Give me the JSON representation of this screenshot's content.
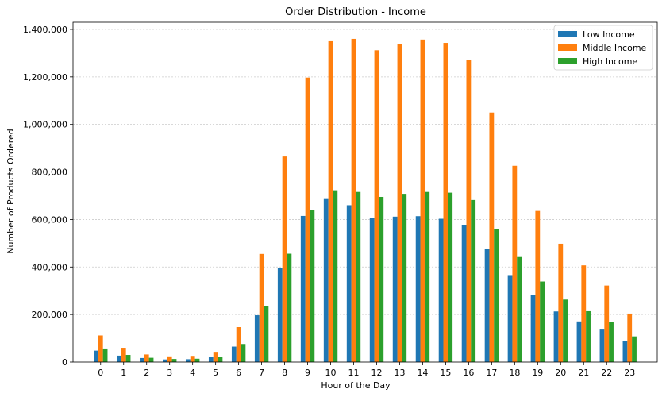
{
  "chart_data": {
    "type": "bar",
    "title": "Order Distribution - Income",
    "xlabel": "Hour of the Day",
    "ylabel": "Number of Products Ordered",
    "ylim": [
      0,
      1430000
    ],
    "yticks": [
      0,
      200000,
      400000,
      600000,
      800000,
      1000000,
      1200000,
      1400000
    ],
    "ytick_labels": [
      "0",
      "200,000",
      "400,000",
      "600,000",
      "800,000",
      "1,000,000",
      "1,200,000",
      "1,400,000"
    ],
    "grid": "y-dotted",
    "legend_position": "top-right",
    "categories": [
      "0",
      "1",
      "2",
      "3",
      "4",
      "5",
      "6",
      "7",
      "8",
      "9",
      "10",
      "11",
      "12",
      "13",
      "14",
      "15",
      "16",
      "17",
      "18",
      "19",
      "20",
      "21",
      "22",
      "23"
    ],
    "series": [
      {
        "name": "Low Income",
        "color": "#1f77b4",
        "values": [
          48000,
          27000,
          17000,
          11000,
          12000,
          20000,
          65000,
          197000,
          397000,
          615000,
          686000,
          660000,
          606000,
          612000,
          614000,
          603000,
          578000,
          476000,
          366000,
          281000,
          213000,
          171000,
          140000,
          89000
        ]
      },
      {
        "name": "Middle Income",
        "color": "#ff7f0e",
        "values": [
          112000,
          60000,
          32000,
          24000,
          26000,
          43000,
          147000,
          455000,
          865000,
          1197000,
          1350000,
          1360000,
          1312000,
          1338000,
          1357000,
          1343000,
          1272000,
          1050000,
          826000,
          636000,
          498000,
          407000,
          322000,
          204000
        ]
      },
      {
        "name": "High Income",
        "color": "#2ca02c",
        "values": [
          57000,
          30000,
          18000,
          13000,
          14000,
          23000,
          76000,
          237000,
          456000,
          640000,
          723000,
          716000,
          695000,
          708000,
          716000,
          713000,
          682000,
          561000,
          442000,
          339000,
          263000,
          214000,
          170000,
          108000
        ]
      }
    ]
  }
}
